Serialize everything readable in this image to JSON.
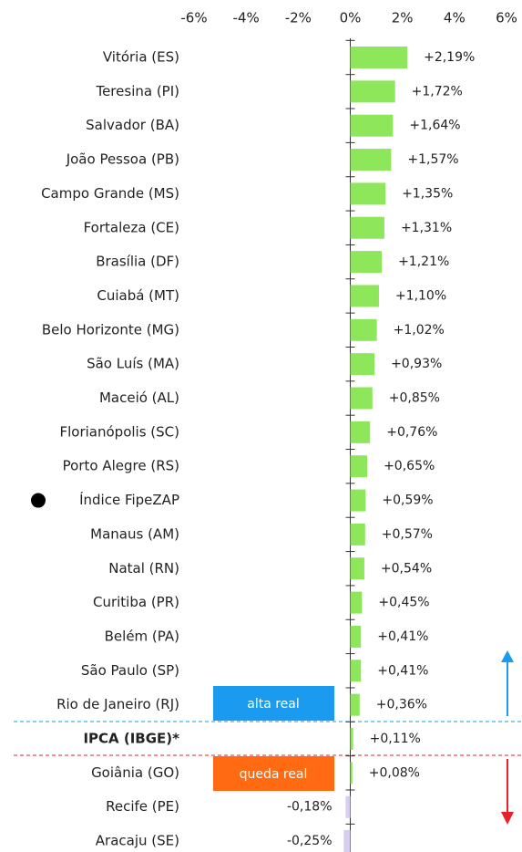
{
  "chart_data": {
    "type": "bar",
    "orientation": "horizontal",
    "categories": [
      "Vitória (ES)",
      "Teresina (PI)",
      "Salvador (BA)",
      "João Pessoa (PB)",
      "Campo Grande (MS)",
      "Fortaleza (CE)",
      "Brasília (DF)",
      "Cuiabá (MT)",
      "Belo Horizonte (MG)",
      "São Luís (MA)",
      "Maceió (AL)",
      "Florianópolis (SC)",
      "Porto Alegre (RS)",
      "Índice FipeZAP",
      "Manaus (AM)",
      "Natal (RN)",
      "Curitiba (PR)",
      "Belém (PA)",
      "São Paulo (SP)",
      "Rio de Janeiro (RJ)",
      "IPCA (IBGE)*",
      "Goiânia (GO)",
      "Recife (PE)",
      "Aracaju (SE)"
    ],
    "values": [
      2.19,
      1.72,
      1.64,
      1.57,
      1.35,
      1.31,
      1.21,
      1.1,
      1.02,
      0.93,
      0.85,
      0.76,
      0.65,
      0.59,
      0.57,
      0.54,
      0.45,
      0.41,
      0.41,
      0.36,
      0.11,
      0.08,
      -0.18,
      -0.25
    ],
    "value_labels": [
      "+2,19%",
      "+1,72%",
      "+1,64%",
      "+1,57%",
      "+1,35%",
      "+1,31%",
      "+1,21%",
      "+1,10%",
      "+1,02%",
      "+0,93%",
      "+0,85%",
      "+0,76%",
      "+0,65%",
      "+0,59%",
      "+0,57%",
      "+0,54%",
      "+0,45%",
      "+0,41%",
      "+0,41%",
      "+0,36%",
      "+0,11%",
      "+0,08%",
      "-0,18%",
      "-0,25%"
    ],
    "color": "#8ee65a",
    "negative_color": "#d9cdf2",
    "xlim": [
      -6,
      6
    ],
    "xticks": [
      {
        "value": -6,
        "label": "-6%"
      },
      {
        "value": -4,
        "label": "-4%"
      },
      {
        "value": -2,
        "label": "-2%"
      },
      {
        "value": 0,
        "label": "0%"
      },
      {
        "value": 2,
        "label": "2%"
      },
      {
        "value": 4,
        "label": "4%"
      },
      {
        "value": 6,
        "label": "6%"
      }
    ],
    "annotations": [
      "alta real",
      "queda real"
    ]
  }
}
